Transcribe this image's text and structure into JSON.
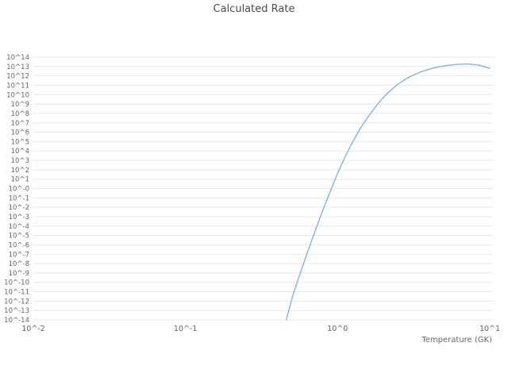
{
  "page": {
    "background": "#ffffff"
  },
  "chart_data": {
    "type": "line",
    "title": "Calculated Rate",
    "xlabel": "Temperature (GK)",
    "ylabel": "",
    "x_scale": "log",
    "y_scale": "log",
    "xlim_log10": [
      -2,
      1
    ],
    "ylim_log10": [
      -14,
      14
    ],
    "legend": "none",
    "grid": {
      "horizontal": true,
      "vertical": false,
      "color": "#e8e8e8"
    },
    "text_color": "#666666",
    "title_color": "#4d4d4d",
    "x_ticks": [
      {
        "label": "10^-2",
        "log10": -2
      },
      {
        "label": "10^-1",
        "log10": -1
      },
      {
        "label": "10^0",
        "log10": 0
      },
      {
        "label": "10^1",
        "log10": 1
      }
    ],
    "y_ticks": [
      {
        "label": "10^14",
        "log10": 14
      },
      {
        "label": "10^13",
        "log10": 13
      },
      {
        "label": "10^12",
        "log10": 12
      },
      {
        "label": "10^11",
        "log10": 11
      },
      {
        "label": "10^10",
        "log10": 10
      },
      {
        "label": "10^9",
        "log10": 9
      },
      {
        "label": "10^8",
        "log10": 8
      },
      {
        "label": "10^7",
        "log10": 7
      },
      {
        "label": "10^6",
        "log10": 6
      },
      {
        "label": "10^5",
        "log10": 5
      },
      {
        "label": "10^4",
        "log10": 4
      },
      {
        "label": "10^3",
        "log10": 3
      },
      {
        "label": "10^2",
        "log10": 2
      },
      {
        "label": "10^1",
        "log10": 1
      },
      {
        "label": "10^-0",
        "log10": 0
      },
      {
        "label": "10^-1",
        "log10": -1
      },
      {
        "label": "10^-2",
        "log10": -2
      },
      {
        "label": "10^-3",
        "log10": -3
      },
      {
        "label": "10^-4",
        "log10": -4
      },
      {
        "label": "10^-5",
        "log10": -5
      },
      {
        "label": "10^-6",
        "log10": -6
      },
      {
        "label": "10^-7",
        "log10": -7
      },
      {
        "label": "10^-8",
        "log10": -8
      },
      {
        "label": "10^-9",
        "log10": -9
      },
      {
        "label": "10^-10",
        "log10": -10
      },
      {
        "label": "10^-11",
        "log10": -11
      },
      {
        "label": "10^-12",
        "log10": -12
      },
      {
        "label": "10^-13",
        "log10": -13
      },
      {
        "label": "10^-14",
        "log10": -14
      }
    ],
    "series": [
      {
        "name": "calculated-rate",
        "color": "#7cb5ec",
        "points_format": "[temperature_GK, log10_rate]",
        "points": [
          [
            0.46,
            -14.0
          ],
          [
            0.5,
            -11.8
          ],
          [
            0.55,
            -9.7
          ],
          [
            0.6,
            -7.9
          ],
          [
            0.66,
            -6.0
          ],
          [
            0.72,
            -4.3
          ],
          [
            0.8,
            -2.3
          ],
          [
            0.9,
            -0.2
          ],
          [
            1.0,
            1.6
          ],
          [
            1.1,
            3.1
          ],
          [
            1.25,
            4.9
          ],
          [
            1.45,
            6.7
          ],
          [
            1.7,
            8.3
          ],
          [
            2.0,
            9.7
          ],
          [
            2.4,
            10.9
          ],
          [
            2.9,
            11.8
          ],
          [
            3.5,
            12.4
          ],
          [
            4.3,
            12.85
          ],
          [
            5.2,
            13.1
          ],
          [
            6.3,
            13.25
          ],
          [
            7.5,
            13.25
          ],
          [
            8.7,
            13.1
          ],
          [
            10.0,
            12.8
          ]
        ]
      }
    ]
  }
}
